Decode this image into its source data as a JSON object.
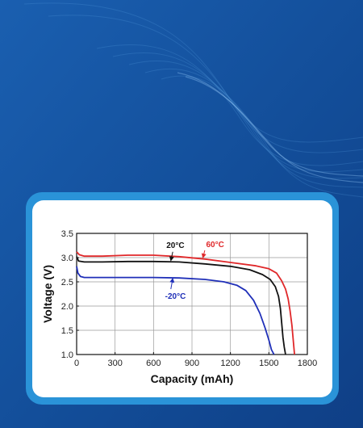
{
  "colors": {
    "background": "#134f9a",
    "card_border": "#2a93d8",
    "card": "#ffffff",
    "series_60C": "#e0282a",
    "series_20C": "#111111",
    "series_minus20C": "#1f2fb8"
  },
  "chart_data": {
    "type": "line",
    "xlabel": "Capacity (mAh)",
    "ylabel": "Voltage (V)",
    "xlim": [
      0,
      1800
    ],
    "ylim": [
      1.0,
      3.5
    ],
    "xticks": [
      "0",
      "300",
      "600",
      "900",
      "1200",
      "1500",
      "1800"
    ],
    "yticks": [
      "1.0",
      "1.5",
      "2.0",
      "2.5",
      "3.0",
      "3.5"
    ],
    "grid": true,
    "series": [
      {
        "name": "60°C",
        "color": "#e0282a",
        "x": [
          0,
          20,
          60,
          200,
          400,
          600,
          800,
          1000,
          1200,
          1400,
          1500,
          1560,
          1600,
          1630,
          1650,
          1665,
          1680,
          1690,
          1700
        ],
        "y": [
          3.12,
          3.06,
          3.03,
          3.03,
          3.05,
          3.05,
          3.02,
          2.97,
          2.9,
          2.83,
          2.77,
          2.68,
          2.52,
          2.35,
          2.15,
          1.9,
          1.6,
          1.3,
          1.0
        ]
      },
      {
        "name": "20°C",
        "color": "#111111",
        "x": [
          0,
          15,
          60,
          200,
          400,
          600,
          800,
          1000,
          1200,
          1350,
          1450,
          1510,
          1550,
          1575,
          1590,
          1600,
          1610,
          1620,
          1630
        ],
        "y": [
          3.02,
          2.93,
          2.91,
          2.91,
          2.92,
          2.92,
          2.91,
          2.87,
          2.82,
          2.75,
          2.65,
          2.55,
          2.4,
          2.2,
          1.95,
          1.65,
          1.35,
          1.15,
          1.0
        ]
      },
      {
        "name": "-20°C",
        "color": "#1f2fb8",
        "x": [
          0,
          10,
          30,
          60,
          200,
          400,
          600,
          800,
          1000,
          1150,
          1250,
          1320,
          1380,
          1430,
          1470,
          1500,
          1520,
          1540
        ],
        "y": [
          2.82,
          2.68,
          2.61,
          2.59,
          2.59,
          2.59,
          2.59,
          2.58,
          2.55,
          2.5,
          2.43,
          2.32,
          2.12,
          1.85,
          1.55,
          1.3,
          1.1,
          1.0
        ]
      }
    ],
    "annotations": [
      {
        "text": "60°C",
        "color": "#e0282a",
        "label_x": 1010,
        "label_y": 3.22,
        "arrow_from": [
          1000,
          3.15
        ],
        "arrow_to": [
          985,
          3.0
        ]
      },
      {
        "text": "20°C",
        "color": "#111111",
        "label_x": 700,
        "label_y": 3.2,
        "arrow_from": [
          750,
          3.12
        ],
        "arrow_to": [
          735,
          2.94
        ]
      },
      {
        "text": "-20°C",
        "color": "#1f2fb8",
        "label_x": 690,
        "label_y": 2.15,
        "arrow_from": [
          735,
          2.35
        ],
        "arrow_to": [
          750,
          2.57
        ]
      }
    ]
  }
}
